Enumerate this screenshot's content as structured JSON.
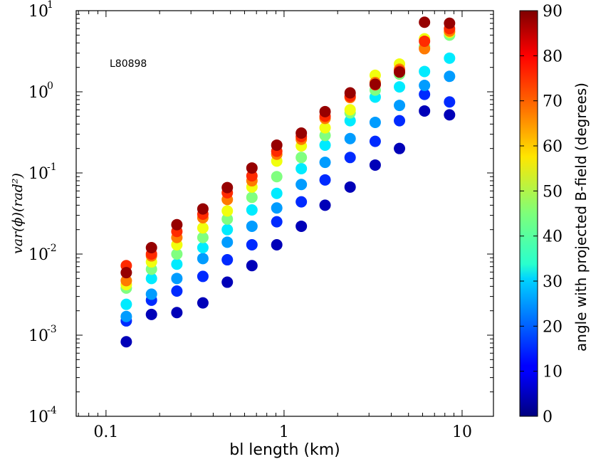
{
  "chart_data": {
    "type": "scatter",
    "title": "",
    "xlabel": "bl length (km)",
    "ylabel": "var(ϕ)(rad²)",
    "xscale": "log",
    "yscale": "log",
    "xlim": [
      0.068,
      15
    ],
    "ylim": [
      0.0001,
      10
    ],
    "x_ticks": [
      {
        "value": 0.1,
        "label": "0.1"
      },
      {
        "value": 1,
        "label": "1"
      },
      {
        "value": 10,
        "label": "10"
      }
    ],
    "y_ticks": [
      {
        "value": 0.0001,
        "base": "10",
        "exp": "-4"
      },
      {
        "value": 0.001,
        "base": "10",
        "exp": "-3"
      },
      {
        "value": 0.01,
        "base": "10",
        "exp": "-2"
      },
      {
        "value": 0.1,
        "base": "10",
        "exp": "-1"
      },
      {
        "value": 1,
        "base": "10",
        "exp": "0"
      },
      {
        "value": 10,
        "base": "10",
        "exp": "1"
      }
    ],
    "annotation": "L80898",
    "colorbar": {
      "label": "angle with projected  B-field (degrees)",
      "min": 0,
      "max": 90,
      "ticks": [
        {
          "value": 0,
          "label": "0"
        },
        {
          "value": 10,
          "label": "10"
        },
        {
          "value": 20,
          "label": "20"
        },
        {
          "value": 30,
          "label": "30"
        },
        {
          "value": 40,
          "label": "40"
        },
        {
          "value": 50,
          "label": "50"
        },
        {
          "value": 60,
          "label": "60"
        },
        {
          "value": 70,
          "label": "70"
        },
        {
          "value": 80,
          "label": "80"
        },
        {
          "value": 90,
          "label": "90"
        }
      ]
    },
    "x": [
      0.13,
      0.18,
      0.25,
      0.35,
      0.48,
      0.66,
      0.91,
      1.25,
      1.7,
      2.35,
      3.25,
      4.45,
      6.15,
      8.5
    ],
    "series": [
      {
        "angle": 5,
        "values": [
          0.00083,
          0.0018,
          0.0019,
          0.0025,
          0.0045,
          0.0072,
          0.013,
          0.022,
          0.04,
          0.067,
          0.125,
          0.2,
          0.58,
          0.52
        ]
      },
      {
        "angle": 15,
        "values": [
          0.0015,
          0.0027,
          0.0035,
          0.0053,
          0.0085,
          0.013,
          0.025,
          0.044,
          0.082,
          0.155,
          0.245,
          0.44,
          0.93,
          0.75
        ]
      },
      {
        "angle": 25,
        "values": [
          0.0017,
          0.0032,
          0.005,
          0.0088,
          0.014,
          0.022,
          0.037,
          0.072,
          0.135,
          0.265,
          0.42,
          0.68,
          1.2,
          1.55
        ]
      },
      {
        "angle": 32,
        "values": [
          0.0024,
          0.005,
          0.0075,
          0.012,
          0.02,
          0.035,
          0.056,
          0.113,
          0.22,
          0.44,
          0.86,
          1.15,
          1.78,
          2.6
        ]
      },
      {
        "angle": 45,
        "values": [
          0.0038,
          0.0065,
          0.01,
          0.016,
          0.027,
          0.05,
          0.09,
          0.155,
          0.29,
          0.55,
          1.05,
          1.65,
          3.6,
          5.0
        ]
      },
      {
        "angle": 55,
        "values": [
          0.0042,
          0.008,
          0.013,
          0.021,
          0.034,
          0.067,
          0.14,
          0.215,
          0.36,
          0.6,
          1.6,
          2.2,
          4.5,
          5.4
        ]
      },
      {
        "angle": 68,
        "values": [
          0.0047,
          0.0095,
          0.016,
          0.028,
          0.047,
          0.08,
          0.17,
          0.26,
          0.47,
          0.85,
          1.3,
          1.9,
          3.4,
          5.6
        ]
      },
      {
        "angle": 75,
        "values": [
          0.0072,
          0.01,
          0.019,
          0.031,
          0.057,
          0.092,
          0.185,
          0.28,
          0.5,
          0.88,
          1.22,
          1.8,
          4.2,
          6.0
        ]
      },
      {
        "angle": 88,
        "values": [
          0.0059,
          0.012,
          0.023,
          0.036,
          0.066,
          0.115,
          0.22,
          0.31,
          0.57,
          0.97,
          1.24,
          1.75,
          7.2,
          7.0
        ]
      }
    ]
  }
}
